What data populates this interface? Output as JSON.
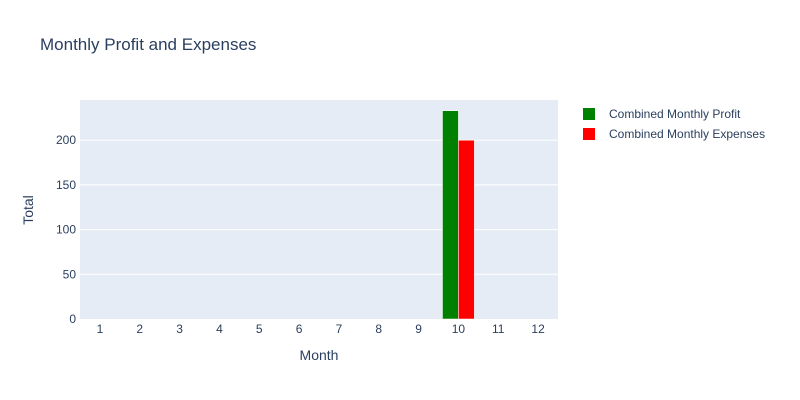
{
  "chart_data": {
    "type": "bar",
    "title": "Monthly Profit and Expenses",
    "xlabel": "Month",
    "ylabel": "Total",
    "categories": [
      "1",
      "2",
      "3",
      "4",
      "5",
      "6",
      "7",
      "8",
      "9",
      "10",
      "11",
      "12"
    ],
    "yticks": [
      "0",
      "50",
      "100",
      "150",
      "200"
    ],
    "ylim": [
      0,
      245
    ],
    "grid": true,
    "legend_position": "top-right",
    "series": [
      {
        "name": "Combined Monthly Profit",
        "color": "#008000",
        "values": [
          0,
          0,
          0,
          0,
          0,
          0,
          0,
          0,
          0,
          233,
          0,
          0
        ]
      },
      {
        "name": "Combined Monthly Expenses",
        "color": "#ff0000",
        "values": [
          0,
          0,
          0,
          0,
          0,
          0,
          0,
          0,
          0,
          200,
          0,
          0
        ]
      }
    ],
    "colors": {
      "plot_background": "#e5ecf6",
      "grid": "#ffffff",
      "text": "#2a3f5f"
    }
  }
}
